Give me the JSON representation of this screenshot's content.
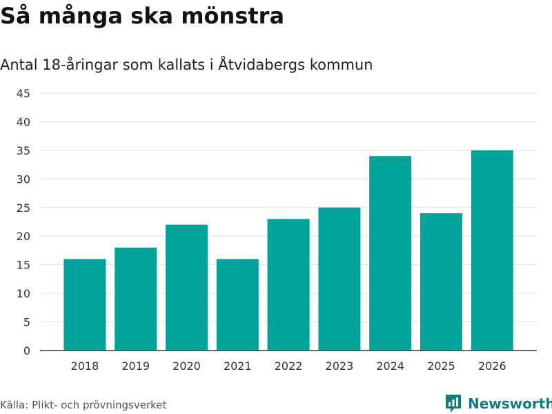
{
  "header": {
    "title": "Så många ska mönstra",
    "subtitle": "Antal 18-åringar som kallats i Åtvidabergs kommun"
  },
  "footer": {
    "source": "Källa: Plikt- och prövningsverket",
    "brand": "Newsworthy"
  },
  "colors": {
    "bar": "#00a39a",
    "grid": "#dedede",
    "axis": "#333333",
    "tick_text": "#333333",
    "brand": "#147b7c"
  },
  "icons": {
    "brand_logo": "bar-chart-speech-bubble-icon"
  },
  "chart_data": {
    "type": "bar",
    "title": "Så många ska mönstra",
    "subtitle": "Antal 18-åringar som kallats i Åtvidabergs kommun",
    "xlabel": "",
    "ylabel": "",
    "categories": [
      "2018",
      "2019",
      "2020",
      "2021",
      "2022",
      "2023",
      "2024",
      "2025",
      "2026"
    ],
    "values": [
      16,
      18,
      22,
      16,
      23,
      25,
      34,
      24,
      35
    ],
    "ylim": [
      0,
      45
    ],
    "yticks": [
      0,
      5,
      10,
      15,
      20,
      25,
      30,
      35,
      40,
      45
    ],
    "grid": true,
    "legend": "none"
  }
}
